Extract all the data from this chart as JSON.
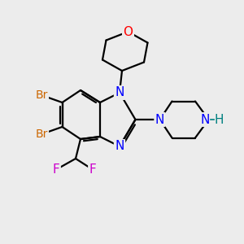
{
  "background_color": "#ececec",
  "atom_colors": {
    "N": "#0000ff",
    "O": "#ff0000",
    "Br": "#cc6600",
    "F": "#cc00cc",
    "NH": "#008080",
    "C": "#000000"
  },
  "bond_color": "#000000",
  "bond_width": 1.6,
  "font_size_atom": 11,
  "figsize": [
    3.0,
    3.0
  ],
  "dpi": 100,
  "xlim": [
    0,
    10
  ],
  "ylim": [
    0,
    10
  ]
}
